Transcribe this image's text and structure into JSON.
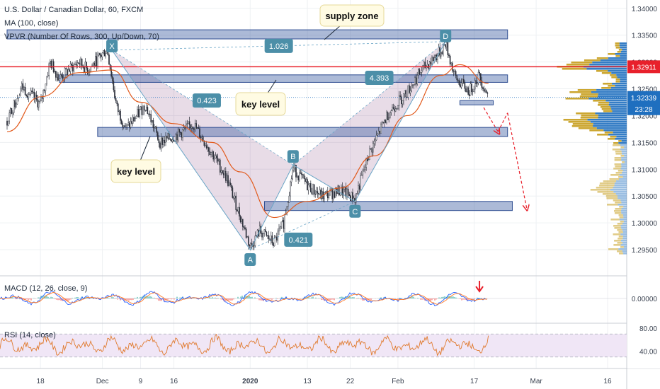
{
  "header": {
    "title": "U.S. Dollar / Canadian Dollar, 60, FXCM",
    "ma": "MA (100, close)",
    "vpvr": "VPVR (Number Of Rows, 300, Up/Down, 70)"
  },
  "chart_data": {
    "type": "line",
    "symbol": "USDCAD",
    "timeframe": "60",
    "price_axis": {
      "ticks": [
        "1.34000",
        "1.33500",
        "1.33000",
        "1.32500",
        "1.32000",
        "1.31500",
        "1.31000",
        "1.30500",
        "1.30000",
        "1.29500"
      ],
      "ylim": [
        1.2925,
        1.3405
      ]
    },
    "x_ticks": [
      "18",
      "Dec",
      "9",
      "16",
      "2020",
      "13",
      "22",
      "Feb",
      "17",
      "Mar",
      "16"
    ],
    "price_series": [
      {
        "t": "Nov 11",
        "p": 1.319
      },
      {
        "t": "Nov 14",
        "p": 1.3255
      },
      {
        "t": "Nov 18",
        "p": 1.322
      },
      {
        "t": "Nov 20",
        "p": 1.33
      },
      {
        "t": "Nov 22",
        "p": 1.327
      },
      {
        "t": "Nov 26",
        "p": 1.33
      },
      {
        "t": "Nov 28",
        "p": 1.3285
      },
      {
        "t": "Dec 2",
        "p": 1.3325
      },
      {
        "t": "Dec 4",
        "p": 1.3215
      },
      {
        "t": "Dec 6",
        "p": 1.3175
      },
      {
        "t": "Dec 10",
        "p": 1.322
      },
      {
        "t": "Dec 13",
        "p": 1.315
      },
      {
        "t": "Dec 17",
        "p": 1.3165
      },
      {
        "t": "Dec 20",
        "p": 1.3185
      },
      {
        "t": "Dec 24",
        "p": 1.313
      },
      {
        "t": "Dec 27",
        "p": 1.3085
      },
      {
        "t": "Dec 30",
        "p": 1.301
      },
      {
        "t": "Jan 1",
        "p": 1.2955
      },
      {
        "t": "Jan 3",
        "p": 1.2985
      },
      {
        "t": "Jan 6",
        "p": 1.2962
      },
      {
        "t": "Jan 8",
        "p": 1.3
      },
      {
        "t": "Jan 10",
        "p": 1.3102
      },
      {
        "t": "Jan 13",
        "p": 1.307
      },
      {
        "t": "Jan 16",
        "p": 1.305
      },
      {
        "t": "Jan 20",
        "p": 1.306
      },
      {
        "t": "Jan 23",
        "p": 1.3045
      },
      {
        "t": "Jan 26",
        "p": 1.313
      },
      {
        "t": "Jan 30",
        "p": 1.3205
      },
      {
        "t": "Feb 3",
        "p": 1.3245
      },
      {
        "t": "Feb 6",
        "p": 1.3285
      },
      {
        "t": "Feb 10",
        "p": 1.332
      },
      {
        "t": "Feb 11",
        "p": 1.3335
      },
      {
        "t": "Feb 13",
        "p": 1.327
      },
      {
        "t": "Feb 16",
        "p": 1.3245
      },
      {
        "t": "Feb 18",
        "p": 1.3275
      },
      {
        "t": "Feb 20",
        "p": 1.3234
      }
    ],
    "ma100": [
      {
        "t": "Nov 11",
        "p": 1.317
      },
      {
        "t": "Nov 18",
        "p": 1.3235
      },
      {
        "t": "Nov 26",
        "p": 1.328
      },
      {
        "t": "Dec 3",
        "p": 1.3285
      },
      {
        "t": "Dec 9",
        "p": 1.3225
      },
      {
        "t": "Dec 16",
        "p": 1.3185
      },
      {
        "t": "Dec 24",
        "p": 1.315
      },
      {
        "t": "Dec 30",
        "p": 1.3095
      },
      {
        "t": "Jan 6",
        "p": 1.301
      },
      {
        "t": "Jan 13",
        "p": 1.304
      },
      {
        "t": "Jan 20",
        "p": 1.3065
      },
      {
        "t": "Jan 27",
        "p": 1.3125
      },
      {
        "t": "Feb 3",
        "p": 1.32
      },
      {
        "t": "Feb 10",
        "p": 1.3275
      },
      {
        "t": "Feb 14",
        "p": 1.3295
      },
      {
        "t": "Feb 20",
        "p": 1.326
      }
    ],
    "pattern_points": [
      {
        "label": "X",
        "t": "Dec 3",
        "p": 1.3322
      },
      {
        "label": "A",
        "t": "Jan 1",
        "p": 1.295
      },
      {
        "label": "B",
        "t": "Jan 10",
        "p": 1.3108
      },
      {
        "label": "C",
        "t": "Jan 23",
        "p": 1.304
      },
      {
        "label": "D",
        "t": "Feb 11",
        "p": 1.3338
      }
    ],
    "ratios": [
      "1.026",
      "0.423",
      "4.393",
      "0.421"
    ],
    "zones": [
      {
        "t0": "Nov 11",
        "t1": "Feb 24",
        "p0": 1.3343,
        "p1": 1.336
      },
      {
        "t0": "Nov 22",
        "t1": "Feb 24",
        "p0": 1.3262,
        "p1": 1.3276
      },
      {
        "t0": "Nov 30",
        "t1": "Feb 24",
        "p0": 1.3161,
        "p1": 1.3178
      },
      {
        "t0": "Jan 4",
        "t1": "Feb 25",
        "p0": 1.3023,
        "p1": 1.304
      },
      {
        "t0": "Feb 14",
        "t1": "Feb 21",
        "p0": 1.322,
        "p1": 1.3228
      }
    ],
    "horizontal_line": 1.32911,
    "current_price": 1.32339,
    "price_labels": {
      "horizontal": "1.32911",
      "current": "1.32339",
      "countdown": "23:28"
    },
    "annotations": {
      "supply": "supply zone",
      "key_top": "key level",
      "key_left": "key level"
    },
    "projection": [
      {
        "t": "Feb 19",
        "p": 1.3215
      },
      {
        "t": "Feb 22",
        "p": 1.317
      },
      {
        "t": "Feb 24",
        "p": 1.3205
      },
      {
        "t": "Feb 28",
        "p": 1.3028
      }
    ],
    "macd": {
      "title": "MACD (12, 26, close, 9)",
      "ticks": [
        "0.00000"
      ]
    },
    "rsi": {
      "title": "RSI (14, close)",
      "ticks": [
        "80.00",
        "40.00"
      ],
      "ylim": [
        15,
        85
      ],
      "band": [
        30,
        70
      ]
    }
  },
  "colors": {
    "background": "#ffffff",
    "grid": "#eef0f3",
    "candle_up": "#2a2e39",
    "candle_down": "#2a2e39",
    "ma": "#e25a1c",
    "zone_fill": "#3a5a9f",
    "zone_stroke": "#2e4d91",
    "pattern_fill": "#7d3f7a",
    "pattern_line": "#6aa5c6",
    "horizontal_line": "#e8202b",
    "projection": "#e8202b",
    "point_tag": "#4c8fa8",
    "price_tag_blue": "#1f6fbf",
    "vpvr_up": "#1f6fbf",
    "vpvr_down": "#c9a227",
    "rsi": "#e07a2e",
    "rsi_band": "#f0e6f6",
    "macd_line": "#2862ff",
    "signal_line": "#ff7722"
  }
}
